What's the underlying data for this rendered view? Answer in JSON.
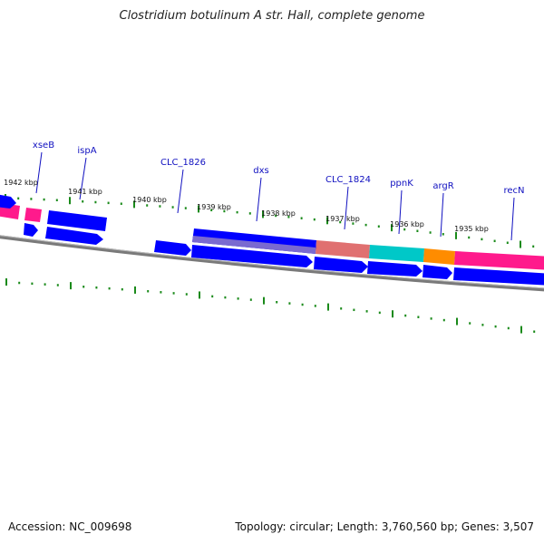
{
  "title": "Clostridium botulinum A str. Hall, complete genome",
  "accession": "Accession: NC_009698",
  "summary": "Topology: circular; Length: 3,760,560 bp; Genes: 3,507",
  "colors": {
    "cds": "#0000ff",
    "pink": "#ff1a8c",
    "salmon": "#f08080",
    "cyan": "#00cccc",
    "orange": "#ff8c00",
    "backbone": "#808080",
    "tick": "#1a8a1a",
    "label": "#1010c0"
  },
  "kbp_labels": [
    "1942 kbp",
    "1941 kbp",
    "1940 kbp",
    "1939 kbp",
    "1938 kbp",
    "1937 kbp",
    "1936 kbp",
    "1935 kbp"
  ],
  "gene_labels": [
    "xseB",
    "ispA",
    "CLC_1826",
    "dxs",
    "CLC_1824",
    "ppnK",
    "argR",
    "recN"
  ]
}
